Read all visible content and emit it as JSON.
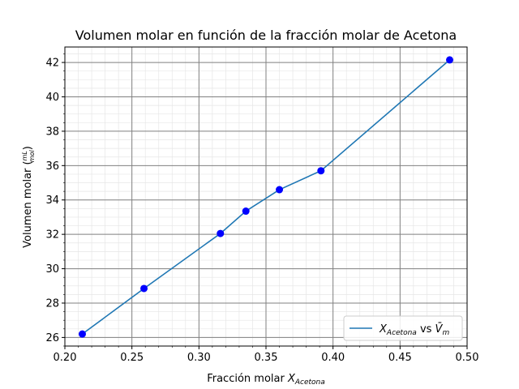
{
  "chart_data": {
    "type": "line",
    "title": "Volumen molar en función de la fracción molar de Acetona",
    "xlabel": {
      "prefix": "Fracción molar ",
      "var": "X",
      "sub": "Acetona"
    },
    "ylabel": {
      "prefix": "Volumen molar (",
      "frac_num": "mL",
      "frac_den": "mol",
      "suffix": ")"
    },
    "xlim": [
      0.2,
      0.5
    ],
    "ylim": [
      25.5,
      42.9
    ],
    "x_ticks": [
      0.2,
      0.25,
      0.3,
      0.35,
      0.4,
      0.45,
      0.5
    ],
    "x_tick_labels": [
      "0.20",
      "0.25",
      "0.30",
      "0.35",
      "0.40",
      "0.45",
      "0.50"
    ],
    "y_ticks": [
      26,
      28,
      30,
      32,
      34,
      36,
      38,
      40,
      42
    ],
    "y_tick_labels": [
      "26",
      "28",
      "30",
      "32",
      "34",
      "36",
      "38",
      "40",
      "42"
    ],
    "grid": {
      "major": true,
      "minor": true
    },
    "series": [
      {
        "name": {
          "var": "X",
          "sub": "Acetona",
          "mid": " vs ",
          "var2": "V̄",
          "sub2": "m"
        },
        "x": [
          0.213,
          0.259,
          0.316,
          0.335,
          0.36,
          0.391,
          0.487
        ],
        "y": [
          26.2,
          28.85,
          32.05,
          33.35,
          34.6,
          35.7,
          42.15
        ],
        "line_color": "#1f77b4",
        "marker_color": "#0000ff"
      }
    ],
    "legend": {
      "position": "lower-right"
    }
  }
}
